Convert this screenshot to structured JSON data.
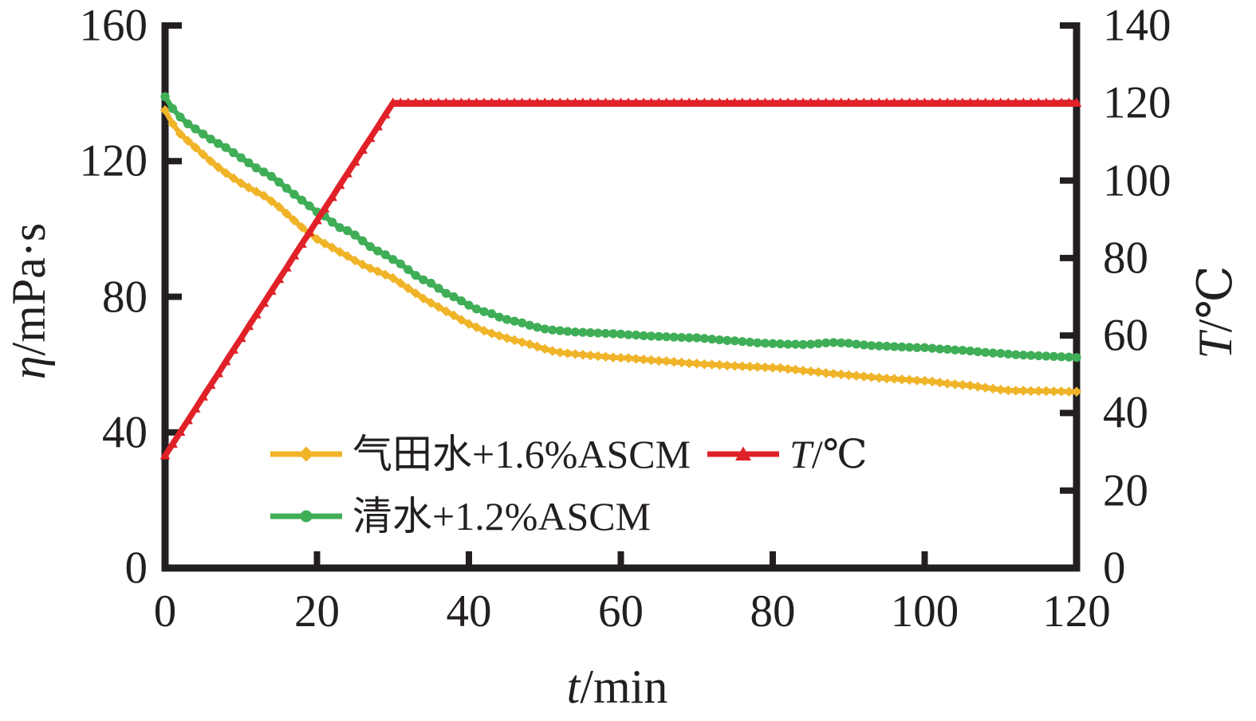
{
  "figure": {
    "background": "#ffffff",
    "axis_color": "#231f20"
  },
  "axes": {
    "left": {
      "symbol": "η",
      "unit": "/mPa·s",
      "range": [
        0,
        160
      ]
    },
    "right": {
      "symbol": "T",
      "unit": "/℃",
      "range": [
        0,
        140
      ]
    },
    "bottom": {
      "symbol": "t",
      "unit": "/min",
      "range": [
        0,
        120
      ]
    }
  },
  "legend": {
    "gas_water_label": "气田水+1.6%ASCM",
    "temp_symbol": "T",
    "temp_unit": "/℃",
    "clear_water_label": "清水+1.2%ASCM"
  },
  "chart_data": {
    "type": "line",
    "title": "",
    "xlabel": "t/min",
    "ylabel_left": "η/mPa·s",
    "ylabel_right": "T/℃",
    "x_range": [
      0,
      120
    ],
    "y_left_range": [
      0,
      160
    ],
    "y_right_range": [
      0,
      140
    ],
    "x_ticks": [
      0,
      20,
      40,
      60,
      80,
      100,
      120
    ],
    "y_left_ticks": [
      0,
      40,
      80,
      120,
      160
    ],
    "y_right_ticks": [
      0,
      20,
      40,
      60,
      80,
      100,
      120,
      140
    ],
    "grid": false,
    "legend_position": "inside-bottom-left",
    "t": [
      0,
      1,
      2,
      3,
      4,
      5,
      6,
      7,
      8,
      9,
      10,
      11,
      12,
      13,
      14,
      15,
      16,
      17,
      18,
      19,
      20,
      21,
      22,
      23,
      24,
      25,
      26,
      27,
      28,
      29,
      30,
      31,
      32,
      33,
      34,
      35,
      36,
      37,
      38,
      39,
      40,
      41,
      42,
      43,
      44,
      45,
      46,
      47,
      48,
      49,
      50,
      51,
      52,
      53,
      54,
      55,
      56,
      57,
      58,
      59,
      60,
      61,
      62,
      63,
      64,
      65,
      66,
      67,
      68,
      69,
      70,
      71,
      72,
      73,
      74,
      75,
      76,
      77,
      78,
      79,
      80,
      81,
      82,
      83,
      84,
      85,
      86,
      87,
      88,
      89,
      90,
      91,
      92,
      93,
      94,
      95,
      96,
      97,
      98,
      99,
      100,
      101,
      102,
      103,
      104,
      105,
      106,
      107,
      108,
      109,
      110,
      111,
      112,
      113,
      114,
      115,
      116,
      117,
      118,
      119,
      120
    ],
    "series": [
      {
        "name": "气田水+1.6%ASCM",
        "axis": "left",
        "unit": "mPa·s",
        "color": "#f0b428",
        "marker": "diamond",
        "values": [
          135,
          131,
          128,
          126,
          124,
          122,
          120,
          118.2,
          116.5,
          115,
          113.5,
          112.2,
          111,
          109.8,
          108.2,
          106.5,
          104.5,
          102.5,
          100.5,
          98.7,
          97,
          95.7,
          94.5,
          93.2,
          92,
          90.7,
          89.5,
          88.4,
          87.5,
          86.5,
          85.5,
          84,
          82.5,
          81,
          79.5,
          78.2,
          77,
          75.7,
          74.5,
          73.2,
          72,
          71,
          70,
          69.2,
          68.5,
          67.8,
          67.2,
          66.6,
          66,
          65.3,
          64.6,
          64,
          63.6,
          63.3,
          63.1,
          62.9,
          62.7,
          62.5,
          62.3,
          62.1,
          62,
          61.9,
          61.7,
          61.5,
          61.3,
          61.1,
          61,
          60.8,
          60.6,
          60.4,
          60.3,
          60.1,
          60,
          59.9,
          59.7,
          59.6,
          59.5,
          59.4,
          59.3,
          59.2,
          59.1,
          59,
          58.7,
          58.5,
          58.2,
          58,
          57.8,
          57.5,
          57.3,
          57.1,
          56.9,
          56.7,
          56.5,
          56.3,
          56.1,
          55.9,
          55.8,
          55.6,
          55.5,
          55.3,
          55.2,
          55,
          54.7,
          54.4,
          54.2,
          54,
          53.8,
          53.5,
          53.2,
          52.9,
          52.6,
          52.4,
          52.3,
          52.3,
          52.2,
          52.2,
          52.2,
          52.1,
          52.1,
          52,
          52
        ]
      },
      {
        "name": "清水+1.2%ASCM",
        "axis": "left",
        "unit": "mPa·s",
        "color": "#3fae57",
        "marker": "circle",
        "values": [
          139,
          135.5,
          133,
          131,
          129.5,
          128,
          126.5,
          125.2,
          124,
          122.5,
          121,
          119.5,
          118,
          116.8,
          115.5,
          113.8,
          112,
          110.2,
          108.5,
          106.8,
          105,
          103.8,
          102,
          100.4,
          99.5,
          98.2,
          96.5,
          94.8,
          93.5,
          92.4,
          91,
          89.7,
          88,
          86.3,
          85,
          84,
          82.5,
          81,
          80,
          78.8,
          77.5,
          76.4,
          75.6,
          75,
          74,
          73.3,
          72.8,
          72.3,
          71.6,
          71,
          70.5,
          70.2,
          70,
          69.8,
          69.6,
          69.5,
          69.4,
          69.3,
          69.2,
          69.1,
          69,
          68.8,
          68.7,
          68.5,
          68.4,
          68.3,
          68.2,
          68.1,
          68,
          67.9,
          67.9,
          67.7,
          67.5,
          67.3,
          67.1,
          67,
          66.8,
          66.6,
          66.4,
          66.3,
          66.2,
          66.1,
          66,
          66,
          65.9,
          66,
          66.2,
          66.4,
          66.5,
          66.4,
          66.3,
          66,
          65.8,
          65.6,
          65.5,
          65.4,
          65.3,
          65.2,
          65.1,
          65,
          65,
          64.8,
          64.6,
          64.5,
          64.3,
          64.2,
          64,
          63.8,
          63.6,
          63.4,
          63.3,
          63.1,
          62.9,
          62.8,
          62.7,
          62.6,
          62.5,
          62.4,
          62.3,
          62.2,
          62.1
        ]
      },
      {
        "name": "T/℃",
        "axis": "right",
        "unit": "℃",
        "color": "#e02128",
        "marker": "triangle",
        "values": [
          29,
          32,
          35.1,
          38.1,
          41.1,
          44.2,
          47.2,
          50.2,
          53.3,
          56.3,
          59.3,
          62.4,
          65.4,
          68.4,
          71.5,
          74.5,
          77.5,
          80.6,
          83.6,
          86.6,
          89.7,
          92.7,
          95.7,
          98.8,
          101.8,
          104.8,
          107.9,
          110.9,
          113.9,
          117,
          120,
          120,
          120,
          120,
          120,
          120,
          120,
          120,
          120,
          120,
          120,
          120,
          120,
          120,
          120,
          120,
          120,
          120,
          120,
          120,
          120,
          120,
          120,
          120,
          120,
          120,
          120,
          120,
          120,
          120,
          120,
          120,
          120,
          120,
          120,
          120,
          120,
          120,
          120,
          120,
          120,
          120,
          120,
          120,
          120,
          120,
          120,
          120,
          120,
          120,
          120,
          120,
          120,
          120,
          120,
          120,
          120,
          120,
          120,
          120,
          120,
          120,
          120,
          120,
          120,
          120,
          120,
          120,
          120,
          120,
          120,
          120,
          120,
          120,
          120,
          120,
          120,
          120,
          120,
          120,
          120,
          120,
          120,
          120,
          120,
          120,
          120,
          120,
          120,
          120,
          120
        ]
      }
    ]
  }
}
